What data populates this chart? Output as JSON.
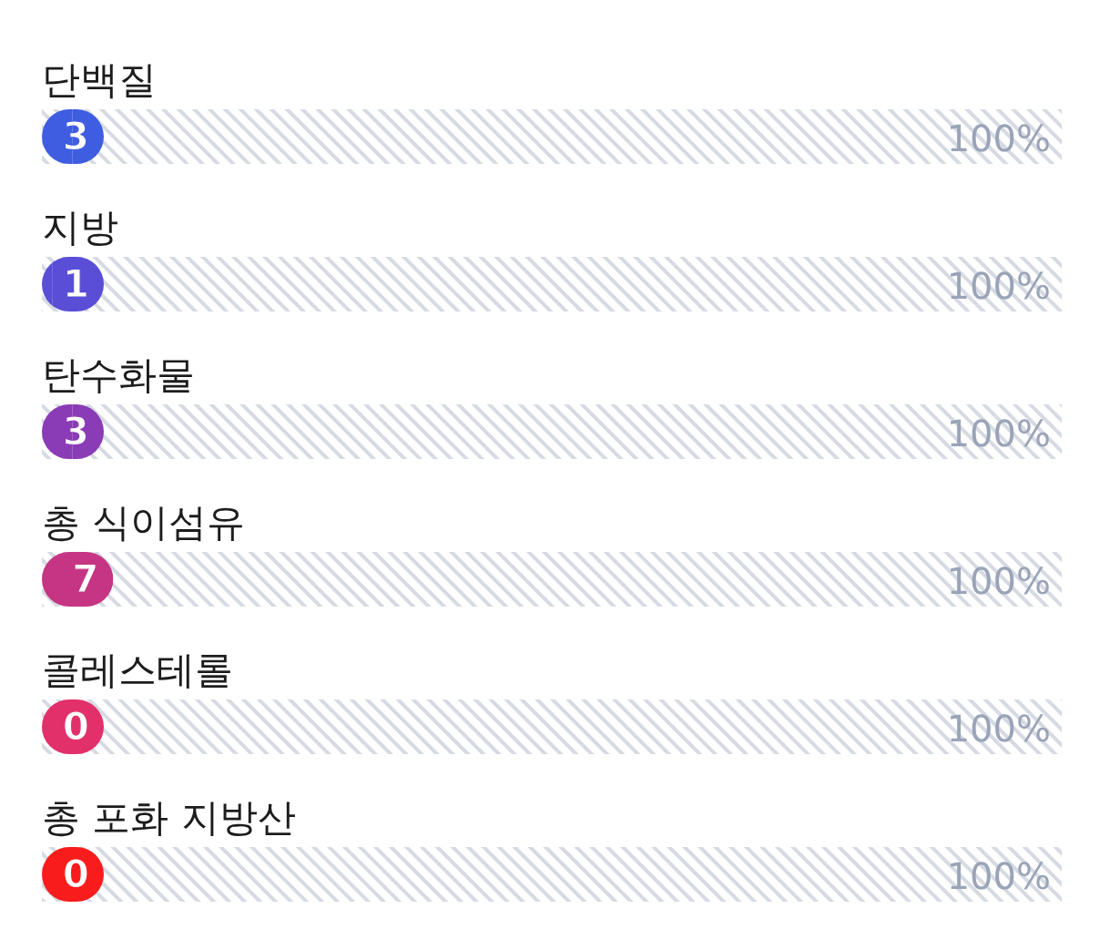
{
  "chart_data": {
    "type": "bar",
    "orientation": "horizontal",
    "categories": [
      "단백질",
      "지방",
      "탄수화물",
      "총 식이섬유",
      "콜레스테롤",
      "총 포화 지방산"
    ],
    "values": [
      3,
      1,
      3,
      7,
      0,
      0
    ],
    "colors": [
      "#3f5de0",
      "#5a4ed6",
      "#8a3bb6",
      "#c63584",
      "#e2306a",
      "#f81c1c"
    ],
    "xlim": [
      0,
      100
    ],
    "annotations": [
      "100%",
      "100%",
      "100%",
      "100%",
      "100%",
      "100%"
    ],
    "data_labels": true
  }
}
